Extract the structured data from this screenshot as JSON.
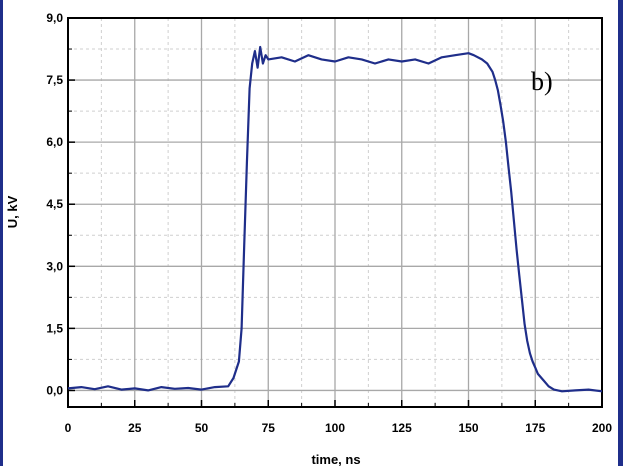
{
  "chart_data": {
    "type": "line",
    "title": "",
    "xlabel": "time, ns",
    "ylabel": "U, kV",
    "xlim": [
      0,
      200
    ],
    "ylim": [
      -0.4,
      9.0
    ],
    "x_ticks": [
      0,
      25,
      50,
      75,
      100,
      125,
      150,
      175,
      200
    ],
    "x_tick_labels": [
      "0",
      "25",
      "50",
      "75",
      "100",
      "125",
      "150",
      "175",
      "200"
    ],
    "y_ticks": [
      0.0,
      1.5,
      3.0,
      4.5,
      6.0,
      7.5,
      9.0
    ],
    "y_tick_labels": [
      "0,0",
      "1,5",
      "3,0",
      "4,5",
      "6,0",
      "7,5",
      "9,0"
    ],
    "x_minor_ticks": [
      12.5,
      37.5,
      62.5,
      87.5,
      112.5,
      137.5,
      162.5,
      187.5
    ],
    "y_minor_ticks": [
      0.75,
      2.25,
      3.75,
      5.25,
      6.75,
      8.25
    ],
    "grid": true,
    "legend": "none",
    "annotation": "b)",
    "line_color": "#1f2e8a",
    "grid_color": "#a8a8a8",
    "series": [
      {
        "x": [
          0,
          5,
          10,
          15,
          20,
          25,
          30,
          35,
          40,
          45,
          50,
          55,
          60,
          62,
          64,
          65,
          66,
          67,
          68,
          69,
          70,
          71,
          72,
          73,
          74,
          75,
          80,
          85,
          90,
          95,
          100,
          105,
          110,
          115,
          120,
          125,
          130,
          135,
          140,
          145,
          150,
          152,
          155,
          157,
          159,
          160,
          161,
          162,
          163,
          164,
          165,
          166,
          167,
          168,
          169,
          170,
          171,
          172,
          173,
          174,
          175,
          176,
          178,
          180,
          182,
          185,
          190,
          195,
          200
        ],
        "y": [
          0.05,
          0.08,
          0.03,
          0.1,
          0.02,
          0.05,
          0.0,
          0.08,
          0.04,
          0.06,
          0.02,
          0.08,
          0.1,
          0.3,
          0.7,
          1.5,
          3.5,
          5.5,
          7.3,
          7.9,
          8.2,
          7.8,
          8.3,
          7.9,
          8.1,
          8.0,
          8.05,
          7.95,
          8.1,
          8.0,
          7.95,
          8.05,
          8.0,
          7.9,
          8.0,
          7.95,
          8.0,
          7.9,
          8.05,
          8.1,
          8.15,
          8.1,
          8.0,
          7.9,
          7.7,
          7.5,
          7.25,
          6.9,
          6.5,
          6.0,
          5.4,
          4.8,
          4.1,
          3.4,
          2.8,
          2.2,
          1.6,
          1.2,
          0.9,
          0.7,
          0.55,
          0.4,
          0.25,
          0.1,
          0.02,
          -0.02,
          0.0,
          0.02,
          -0.02
        ]
      }
    ]
  }
}
